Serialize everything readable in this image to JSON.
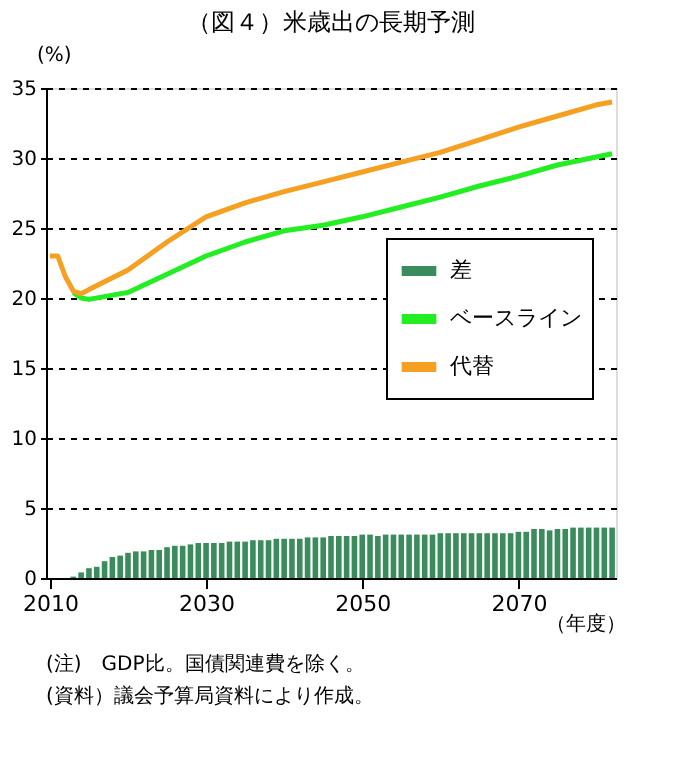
{
  "chart_data": {
    "type": "bar",
    "title": "（図４）米歳出の長期予測",
    "ylabel": "(%)",
    "xlabel": "（年度）",
    "annotations": [
      "(注)　GDP比。国債関連費を除く。",
      "(資料）議会予算局資料により作成。"
    ],
    "x": [
      2010,
      2011,
      2012,
      2013,
      2014,
      2015,
      2016,
      2017,
      2018,
      2019,
      2020,
      2021,
      2022,
      2023,
      2024,
      2025,
      2026,
      2027,
      2028,
      2029,
      2030,
      2031,
      2032,
      2033,
      2034,
      2035,
      2036,
      2037,
      2038,
      2039,
      2040,
      2041,
      2042,
      2043,
      2044,
      2045,
      2046,
      2047,
      2048,
      2049,
      2050,
      2051,
      2052,
      2053,
      2054,
      2055,
      2056,
      2057,
      2058,
      2059,
      2060,
      2061,
      2062,
      2063,
      2064,
      2065,
      2066,
      2067,
      2068,
      2069,
      2070,
      2071,
      2072,
      2073,
      2074,
      2075,
      2076,
      2077,
      2078,
      2079,
      2080,
      2081,
      2082
    ],
    "series": [
      {
        "name": "差",
        "color": "#3a8c5c",
        "values": [
          0,
          0,
          0,
          0.1,
          0.4,
          0.7,
          0.8,
          1.2,
          1.5,
          1.6,
          1.8,
          1.9,
          1.9,
          2.0,
          2.0,
          2.2,
          2.3,
          2.3,
          2.4,
          2.5,
          2.5,
          2.5,
          2.5,
          2.6,
          2.6,
          2.6,
          2.7,
          2.7,
          2.7,
          2.8,
          2.8,
          2.8,
          2.8,
          2.9,
          2.9,
          2.9,
          3.0,
          3.0,
          3.0,
          3.0,
          3.1,
          3.1,
          3.0,
          3.1,
          3.1,
          3.1,
          3.1,
          3.1,
          3.1,
          3.1,
          3.2,
          3.2,
          3.2,
          3.2,
          3.2,
          3.2,
          3.2,
          3.2,
          3.2,
          3.2,
          3.3,
          3.3,
          3.5,
          3.5,
          3.4,
          3.5,
          3.5,
          3.6,
          3.6,
          3.6,
          3.6,
          3.6,
          3.6
        ]
      },
      {
        "name": "ベースライン",
        "type": "line",
        "color": "#22ee22",
        "x": [
          2013,
          2014,
          2015,
          2020,
          2025,
          2030,
          2035,
          2040,
          2045,
          2050,
          2055,
          2060,
          2065,
          2070,
          2075,
          2082
        ],
        "values": [
          20.4,
          20.0,
          19.9,
          20.4,
          21.7,
          23.0,
          24.0,
          24.8,
          25.2,
          25.8,
          26.5,
          27.2,
          28.0,
          28.7,
          29.5,
          30.3
        ]
      },
      {
        "name": "代替",
        "type": "line",
        "color": "#f5a020",
        "x": [
          2010,
          2011,
          2012,
          2013,
          2014,
          2015,
          2020,
          2025,
          2030,
          2035,
          2040,
          2045,
          2050,
          2055,
          2060,
          2065,
          2070,
          2075,
          2080,
          2082
        ],
        "values": [
          23.0,
          23.0,
          21.5,
          20.5,
          20.3,
          20.6,
          22.0,
          24.0,
          25.8,
          26.8,
          27.6,
          28.3,
          29.0,
          29.7,
          30.4,
          31.3,
          32.2,
          33.0,
          33.8,
          34.0
        ]
      }
    ],
    "xlim": [
      2009.5,
      2082.5
    ],
    "xticks": [
      2010,
      2030,
      2050,
      2070
    ],
    "ylim": [
      0,
      35
    ],
    "yticks": [
      0,
      5,
      10,
      15,
      20,
      25,
      30,
      35
    ],
    "grid": "y",
    "legend": "right",
    "line_style": "solid",
    "marker": "none"
  }
}
